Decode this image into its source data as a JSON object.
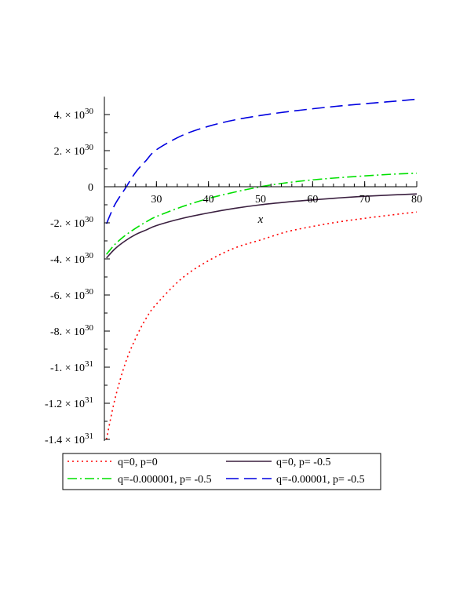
{
  "chart_data": {
    "type": "line",
    "xlabel": "x",
    "ylabel": "",
    "xlim": [
      20,
      80
    ],
    "ylim": [
      -1.4e+31,
      4.9e+30
    ],
    "x_ticks": [
      {
        "value": 30,
        "label": "30"
      },
      {
        "value": 40,
        "label": "40"
      },
      {
        "value": 50,
        "label": "50"
      },
      {
        "value": 60,
        "label": "60"
      },
      {
        "value": 70,
        "label": "70"
      },
      {
        "value": 80,
        "label": "80"
      }
    ],
    "y_ticks": [
      {
        "value": 4e+30,
        "mant": "4. × 10",
        "exp": "30"
      },
      {
        "value": 2e+30,
        "mant": "2. × 10",
        "exp": "30"
      },
      {
        "value": 0,
        "mant": "0",
        "exp": ""
      },
      {
        "value": -2e+30,
        "mant": "-2. × 10",
        "exp": "30"
      },
      {
        "value": -4e+30,
        "mant": "-4. × 10",
        "exp": "30"
      },
      {
        "value": -6e+30,
        "mant": "-6. × 10",
        "exp": "30"
      },
      {
        "value": -8e+30,
        "mant": "-8. × 10",
        "exp": "30"
      },
      {
        "value": -1e+31,
        "mant": "-1. × 10",
        "exp": "31"
      },
      {
        "value": -1.2e+31,
        "mant": "-1.2 × 10",
        "exp": "31"
      },
      {
        "value": -1.4e+31,
        "mant": "-1.4 × 10",
        "exp": "31"
      }
    ],
    "legend_position": "bottom",
    "series": [
      {
        "name": "q=0, p=0",
        "color": "#ff0000",
        "style": "dotted",
        "x": [
          20.4,
          22,
          24,
          26,
          28,
          30,
          35,
          40,
          45,
          50,
          55,
          60,
          65,
          70,
          75,
          80
        ],
        "y": [
          -1.4e+31,
          -1.18e+31,
          -9.8e+30,
          -8.4e+30,
          -7.3e+30,
          -6.5e+30,
          -5.05e+30,
          -4.1e+30,
          -3.4e+30,
          -2.95e+30,
          -2.5e+30,
          -2.2e+30,
          -1.95e+30,
          -1.75e+30,
          -1.57e+30,
          -1.4e+30
        ]
      },
      {
        "name": "q=0, p= -0.5",
        "color": "#3a1f3f",
        "style": "solid",
        "x": [
          20.4,
          22,
          24,
          26,
          28,
          30,
          35,
          40,
          45,
          50,
          55,
          60,
          65,
          70,
          75,
          80
        ],
        "y": [
          -3.95e+30,
          -3.45e+30,
          -3e+30,
          -2.65e+30,
          -2.4e+30,
          -2.15e+30,
          -1.75e+30,
          -1.45e+30,
          -1.2e+30,
          -1e+30,
          -8.5e+29,
          -7.3e+29,
          -6.2e+29,
          -5.3e+29,
          -4.6e+29,
          -4e+29
        ]
      },
      {
        "name": "q=-0.000001, p= -0.5",
        "color": "#00e000",
        "style": "dashdot",
        "x": [
          20.4,
          22,
          24,
          26,
          28,
          30,
          35,
          40,
          45,
          50,
          55,
          60,
          65,
          70,
          75,
          80
        ],
        "y": [
          -3.75e+30,
          -3.2e+30,
          -2.7e+30,
          -2.3e+30,
          -1.95e+30,
          -1.65e+30,
          -1.1e+30,
          -6.5e+29,
          -3e+29,
          0,
          2.2e+29,
          3.8e+29,
          5e+29,
          6e+29,
          6.9e+29,
          7.5e+29
        ]
      },
      {
        "name": "q=-0.00001, p= -0.5",
        "color": "#0000e0",
        "style": "dashed",
        "x": [
          20.4,
          22,
          24,
          26,
          28,
          30,
          35,
          40,
          45,
          50,
          55,
          60,
          65,
          70,
          75,
          80
        ],
        "y": [
          -2.05e+30,
          -1e+30,
          -1e+29,
          8e+29,
          1.45e+30,
          2.05e+30,
          2.85e+30,
          3.35e+30,
          3.7e+30,
          3.95e+30,
          4.15e+30,
          4.32e+30,
          4.47e+30,
          4.6e+30,
          4.72e+30,
          4.85e+30
        ]
      }
    ]
  }
}
